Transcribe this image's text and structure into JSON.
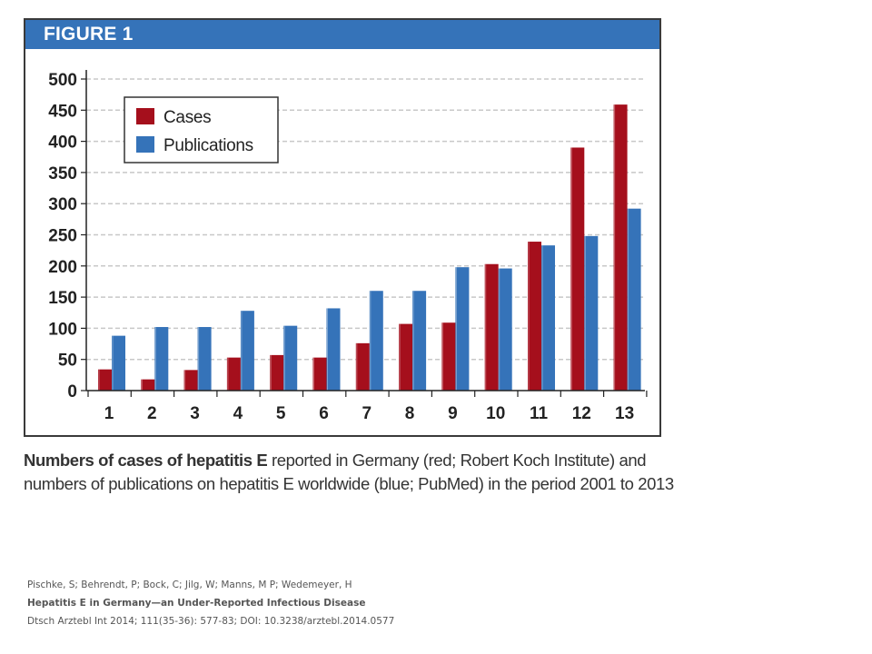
{
  "figure": {
    "label": "FIGURE 1"
  },
  "caption": {
    "lead": "Numbers of cases of hepatitis E",
    "rest": " reported in Germany (red; Robert Koch Institute) and numbers of publications on hepatitis E worldwide (blue; PubMed) in the period 2001 to 2013"
  },
  "citation": {
    "authors": "Pischke, S; Behrendt, P; Bock, C; Jilg, W; Manns, M P; Wedemeyer, H",
    "title": "Hepatitis E in Germany—an Under-Reported Infectious Disease",
    "source": "Dtsch Arztebl Int 2014; 111(35-36): 577-83; DOI: 10.3238/arztebl.2014.0577"
  },
  "chart_data": {
    "type": "bar",
    "categories": [
      "1",
      "2",
      "3",
      "4",
      "5",
      "6",
      "7",
      "8",
      "9",
      "10",
      "11",
      "12",
      "13"
    ],
    "series": [
      {
        "name": "Cases",
        "color": "#a50f1c",
        "values": [
          34,
          18,
          33,
          53,
          57,
          53,
          76,
          107,
          109,
          203,
          239,
          390,
          459
        ]
      },
      {
        "name": "Publications",
        "color": "#3573b9",
        "values": [
          88,
          102,
          102,
          128,
          104,
          132,
          160,
          160,
          198,
          196,
          233,
          248,
          292
        ]
      }
    ],
    "yticks": [
      0,
      50,
      100,
      150,
      200,
      250,
      300,
      350,
      400,
      450,
      500
    ],
    "ylim": [
      0,
      500
    ],
    "title": "",
    "xlabel": "",
    "ylabel": "",
    "grid": true,
    "legend_position": "top-left"
  }
}
